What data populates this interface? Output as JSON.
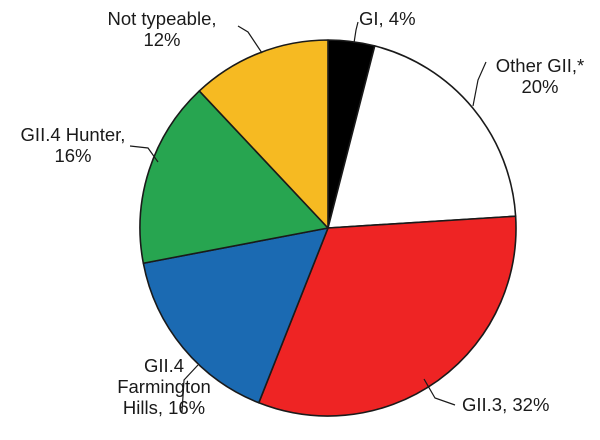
{
  "chart_data": {
    "type": "pie",
    "title": "",
    "slices": [
      {
        "name": "GI",
        "value": 4,
        "color": "#000000",
        "label_lines": [
          "GI, 4%"
        ]
      },
      {
        "name": "Other GII,*",
        "value": 20,
        "color": "#ffffff",
        "label_lines": [
          "Other GII,*",
          "20%"
        ]
      },
      {
        "name": "GII.3",
        "value": 32,
        "color": "#ee2424",
        "label_lines": [
          "GII.3, 32%"
        ]
      },
      {
        "name": "GII.4 Farmington Hills",
        "value": 16,
        "color": "#1b6ab2",
        "label_lines": [
          "GII.4",
          "Farmington",
          "Hills, 16%"
        ]
      },
      {
        "name": "GII.4 Hunter",
        "value": 16,
        "color": "#27a550",
        "label_lines": [
          "GII.4 Hunter,",
          "16%"
        ]
      },
      {
        "name": "Not typeable",
        "value": 12,
        "color": "#f6ba22",
        "label_lines": [
          "Not typeable,",
          "12%"
        ]
      }
    ]
  }
}
